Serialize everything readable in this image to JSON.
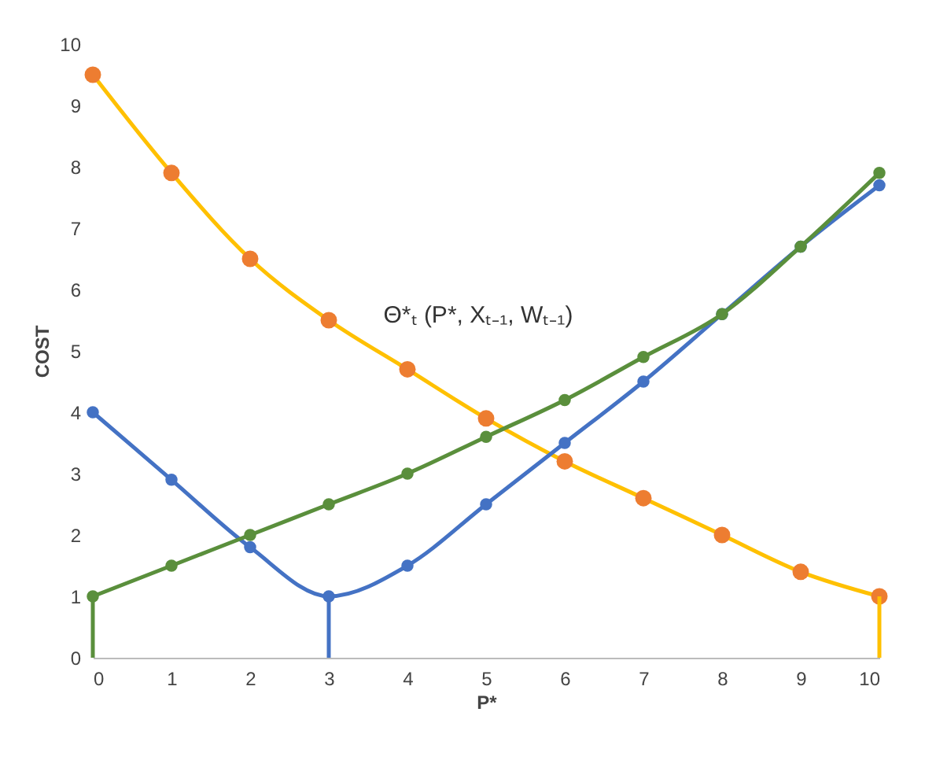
{
  "chart_data": {
    "type": "line",
    "xlabel": "P*",
    "ylabel": "COST",
    "x": [
      0,
      1,
      2,
      3,
      4,
      5,
      6,
      7,
      8,
      9,
      10
    ],
    "xlim": [
      0,
      10
    ],
    "xticks": [
      0,
      1,
      2,
      3,
      4,
      5,
      6,
      7,
      8,
      9,
      10
    ],
    "ylim": [
      0,
      10
    ],
    "yticks": [
      0,
      1,
      2,
      3,
      4,
      5,
      6,
      7,
      8,
      9,
      10
    ],
    "grid": false,
    "marker": "circle",
    "line_style": "solid",
    "annotations": [
      "Θ*ₜ (P*, Xₜ₋₁, Wₜ₋₁)"
    ],
    "series": [
      {
        "color": "#ffc000",
        "colors": [
          "#ed7d31",
          "#ed7d31",
          "#ed7d31",
          "#ed7d31",
          "#ed7d31",
          "#ed7d31",
          "#ed7d31",
          "#ed7d31",
          "#ed7d31",
          "#ed7d31",
          "#ed7d31"
        ],
        "values": [
          9.5,
          7.9,
          6.5,
          5.5,
          4.7,
          3.9,
          3.2,
          2.6,
          2.0,
          1.4,
          1.0
        ]
      },
      {
        "color": "#4472c4",
        "values": [
          4.0,
          2.9,
          1.8,
          1.0,
          1.5,
          2.5,
          3.5,
          4.5,
          5.6,
          6.7,
          7.7
        ]
      },
      {
        "color": "#5a8f3c",
        "values": [
          1.0,
          1.5,
          2.0,
          2.5,
          3.0,
          3.6,
          4.2,
          4.9,
          5.6,
          6.7,
          7.9
        ]
      },
      {
        "color": "#ffc000",
        "marker": "none",
        "x": [
          10,
          10
        ],
        "values": [
          1.0,
          0
        ]
      },
      {
        "color": "#4472c4",
        "marker": "none",
        "x": [
          3,
          3
        ],
        "values": [
          1.0,
          0
        ]
      },
      {
        "color": "#5a8f3c",
        "marker": "none",
        "x": [
          0,
          0
        ],
        "values": [
          1.0,
          0
        ]
      }
    ]
  }
}
